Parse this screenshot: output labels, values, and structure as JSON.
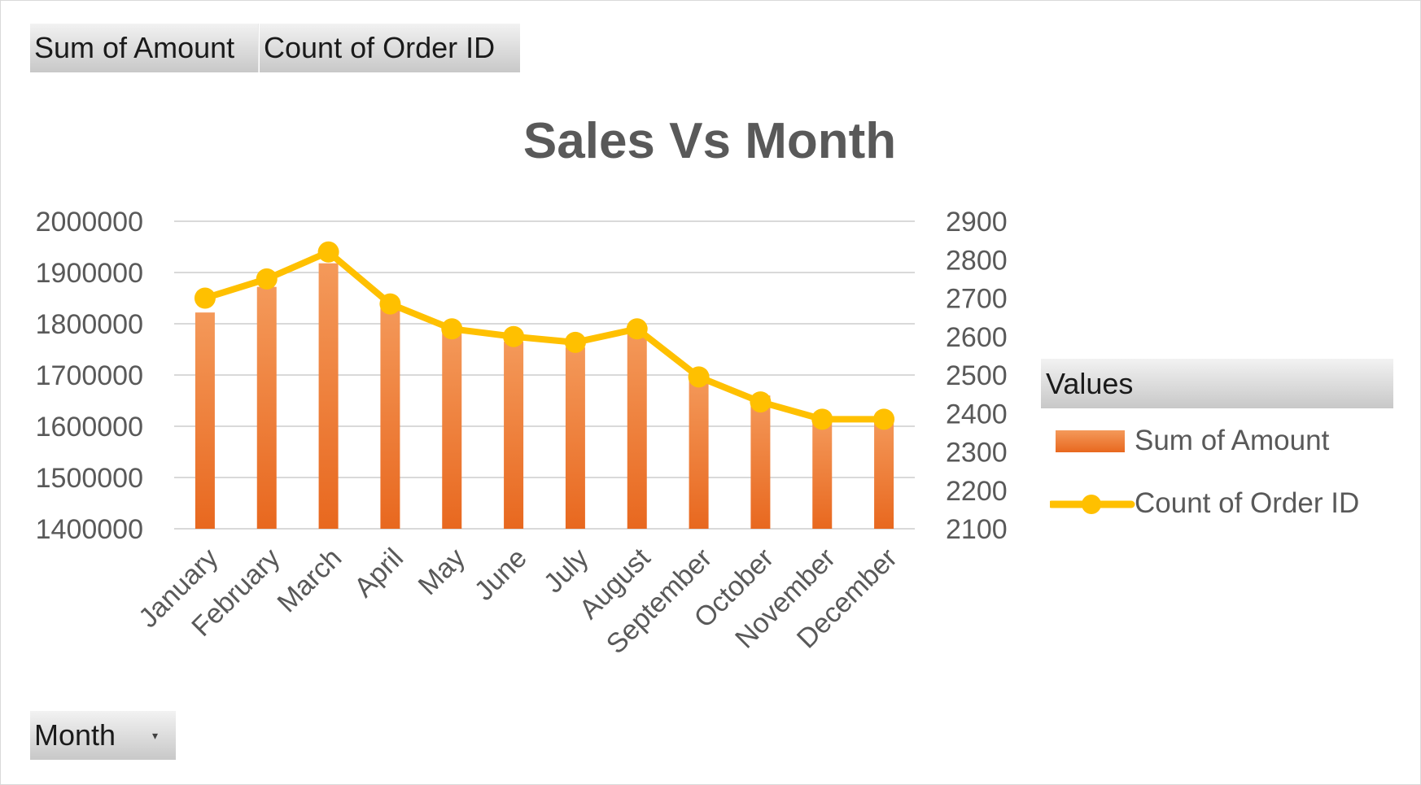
{
  "field_buttons": {
    "sum_label": "Sum of Amount",
    "count_label": "Count of Order ID",
    "month_label": "Month"
  },
  "legend": {
    "header": "Values",
    "items": [
      "Sum of Amount",
      "Count of Order ID"
    ]
  },
  "colors": {
    "bar": "#ed7d31",
    "line": "#ffc000",
    "text": "#595959",
    "grid": "#d9d9d9"
  },
  "chart_data": {
    "type": "bar",
    "title": "Sales Vs Month",
    "categories": [
      "January",
      "February",
      "March",
      "April",
      "May",
      "June",
      "July",
      "August",
      "September",
      "October",
      "November",
      "December"
    ],
    "series": [
      {
        "name": "Sum of Amount",
        "type": "bar",
        "axis": "left",
        "values": [
          1822000,
          1872000,
          1918000,
          1840000,
          1788000,
          1765000,
          1754000,
          1789000,
          1698000,
          1660000,
          1612000,
          1617000
        ]
      },
      {
        "name": "Count of Order ID",
        "type": "line",
        "axis": "right",
        "values": [
          2700,
          2750,
          2820,
          2685,
          2620,
          2600,
          2585,
          2620,
          2495,
          2430,
          2385,
          2385
        ]
      }
    ],
    "y_left": {
      "min": 1400000,
      "max": 2000000,
      "ticks": [
        "1400000",
        "1500000",
        "1600000",
        "1700000",
        "1800000",
        "1900000",
        "2000000"
      ]
    },
    "y_right": {
      "min": 2100,
      "max": 2900,
      "ticks": [
        "2100",
        "2200",
        "2300",
        "2400",
        "2500",
        "2600",
        "2700",
        "2800",
        "2900"
      ]
    },
    "grid": true,
    "legend_position": "right"
  }
}
